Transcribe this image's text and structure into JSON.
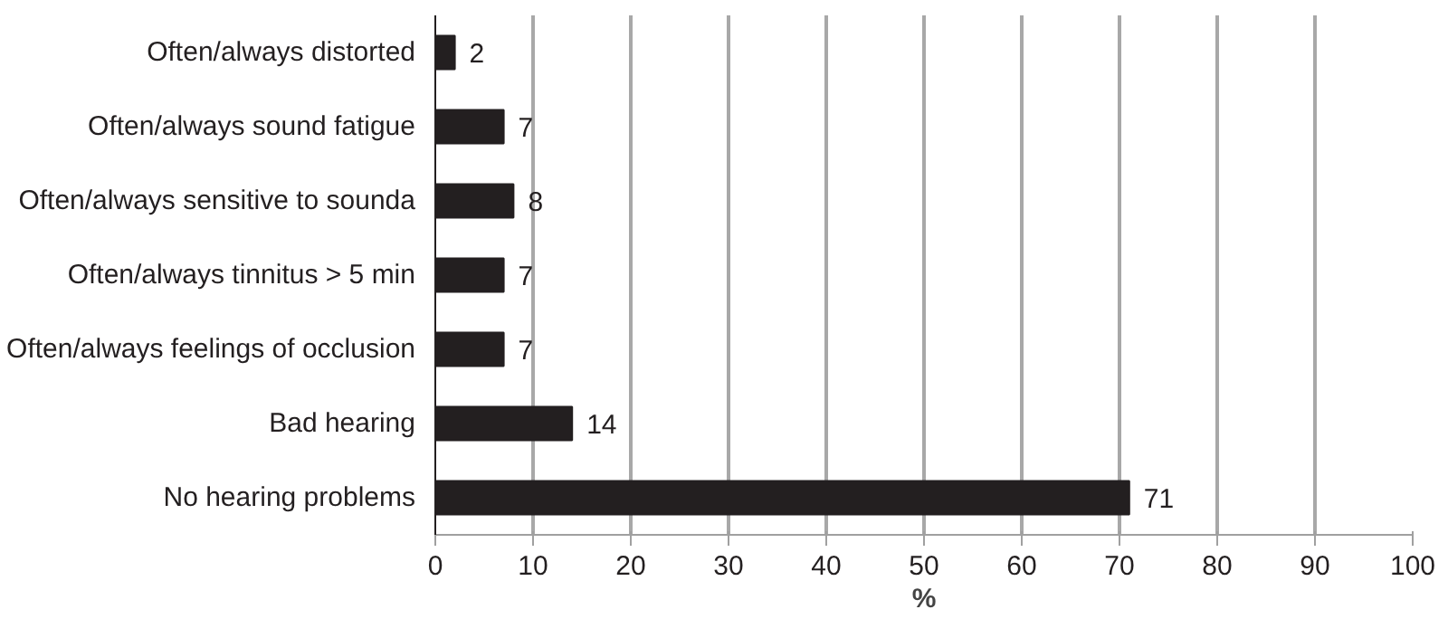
{
  "chart_data": {
    "type": "bar",
    "orientation": "horizontal",
    "categories": [
      "Often/always distorted",
      "Often/always sound fatigue",
      "Often/always sensitive to sounda",
      "Often/always tinnitus > 5 min",
      "Often/always feelings of occlusion",
      "Bad hearing",
      "No hearing problems"
    ],
    "values": [
      2,
      7,
      8,
      7,
      7,
      14,
      71
    ],
    "color": "#231f20",
    "xlabel": "%",
    "xlim": [
      0,
      100
    ],
    "xticks": [
      0,
      10,
      20,
      30,
      40,
      50,
      60,
      70,
      80,
      90,
      100
    ],
    "grid": "x",
    "data_labels": true
  }
}
